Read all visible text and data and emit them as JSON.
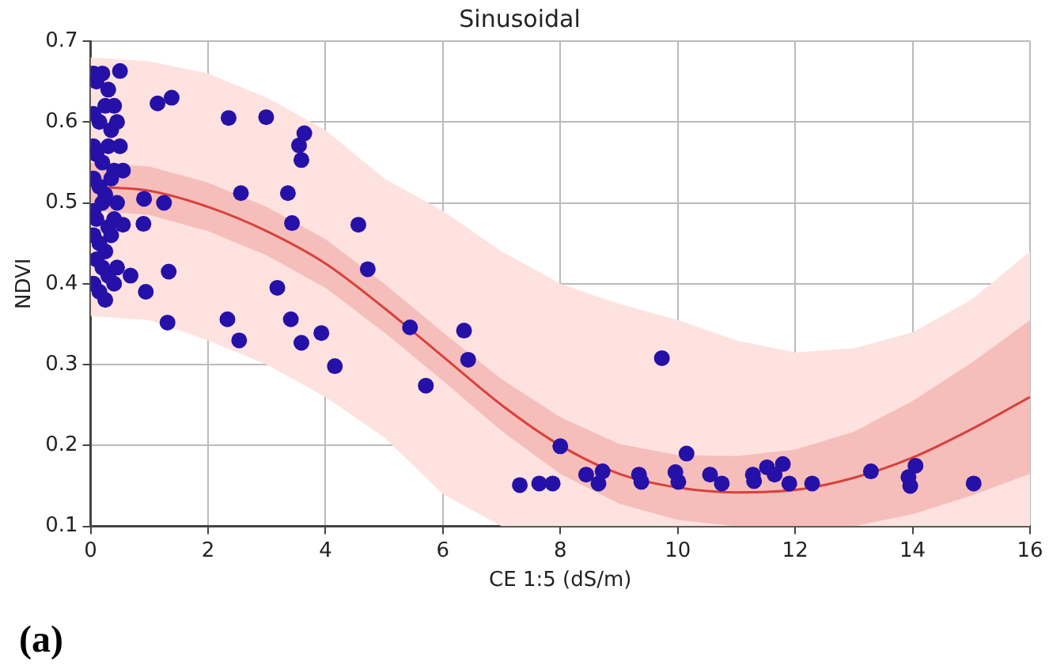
{
  "chart_data": {
    "type": "scatter",
    "title": "Sinusoidal",
    "xlabel": "CE 1:5 (dS/m)",
    "ylabel": "NDVI",
    "annotations": [
      "(a)"
    ],
    "xlim": [
      0,
      16
    ],
    "xticks": [
      0,
      2,
      4,
      6,
      8,
      10,
      12,
      14,
      16
    ],
    "ylim": [
      0.1,
      0.7
    ],
    "yticks": [
      0.1,
      0.2,
      0.3,
      0.4,
      0.5,
      0.6,
      0.7
    ],
    "grid": true,
    "legend": false,
    "marker": "circle",
    "series": [
      {
        "type": "area",
        "color": "#fde2df",
        "x": [
          0,
          1,
          2,
          3,
          4,
          5,
          6,
          7,
          8,
          9,
          10,
          11,
          12,
          13,
          14,
          15,
          16
        ],
        "values": [
          null,
          null,
          null,
          null,
          null,
          null,
          null,
          null,
          null,
          null,
          null,
          null,
          null,
          null,
          null,
          null,
          null
        ],
        "lower": [
          0.36,
          0.355,
          0.33,
          0.3,
          0.26,
          0.21,
          0.14,
          0.1,
          0.1,
          0.1,
          0.1,
          0.1,
          0.1,
          0.1,
          0.1,
          0.1,
          0.1
        ],
        "upper": [
          0.68,
          0.675,
          0.66,
          0.63,
          0.59,
          0.53,
          0.49,
          0.44,
          0.4,
          0.375,
          0.355,
          0.33,
          0.315,
          0.32,
          0.34,
          0.38,
          0.44
        ]
      },
      {
        "type": "line",
        "color": "#d9413a",
        "marker": "none",
        "line_style": "solid",
        "x": [
          0,
          1,
          2,
          3,
          4,
          5,
          6,
          7,
          8,
          9,
          10,
          11,
          12,
          13,
          14,
          15,
          16
        ],
        "values": [
          0.52,
          0.515,
          0.495,
          0.465,
          0.425,
          0.37,
          0.31,
          0.25,
          0.2,
          0.165,
          0.148,
          0.142,
          0.145,
          0.16,
          0.185,
          0.22,
          0.26
        ],
        "lower": [
          0.49,
          0.485,
          0.465,
          0.435,
          0.395,
          0.34,
          0.28,
          0.218,
          0.165,
          0.128,
          0.108,
          0.1,
          0.1,
          0.1,
          0.115,
          0.138,
          0.165
        ],
        "upper": [
          0.55,
          0.545,
          0.525,
          0.495,
          0.455,
          0.4,
          0.34,
          0.282,
          0.235,
          0.202,
          0.188,
          0.187,
          0.195,
          0.217,
          0.255,
          0.302,
          0.355
        ]
      },
      {
        "color": "#2510a8",
        "x": [
          0.5,
          1.14,
          1.38,
          2.35,
          2.99,
          3.64,
          3.55,
          3.59,
          2.56,
          3.36,
          0.91,
          1.25,
          0.9,
          0.55,
          3.43,
          4.56,
          4.72,
          1.33,
          0.68,
          0.94,
          3.18,
          1.31,
          2.33,
          3.41,
          2.53,
          3.59,
          3.93,
          4.16,
          5.44,
          5.71,
          6.36,
          6.43,
          9.73,
          8.0,
          7.31,
          7.64,
          7.87,
          8.44,
          8.72,
          8.65,
          9.34,
          9.38,
          9.96,
          10.01,
          10.15,
          10.55,
          10.75,
          11.28,
          11.3,
          11.52,
          11.65,
          11.79,
          11.9,
          12.29,
          13.29,
          13.93,
          13.96,
          14.05,
          15.04,
          0.05,
          0.1,
          0.2,
          0.3,
          0.4,
          0.05,
          0.15,
          0.25,
          0.35,
          0.45,
          0.05,
          0.1,
          0.2,
          0.3,
          0.4,
          0.5,
          0.05,
          0.15,
          0.25,
          0.35,
          0.45,
          0.55,
          0.05,
          0.1,
          0.2,
          0.3,
          0.4,
          0.05,
          0.15,
          0.25,
          0.35,
          0.1,
          0.2,
          0.3,
          0.45,
          0.05,
          0.15,
          0.25,
          0.4
        ],
        "values": [
          0.663,
          0.623,
          0.63,
          0.605,
          0.606,
          0.586,
          0.571,
          0.553,
          0.512,
          0.512,
          0.505,
          0.5,
          0.474,
          0.473,
          0.475,
          0.473,
          0.418,
          0.415,
          0.41,
          0.39,
          0.395,
          0.352,
          0.356,
          0.356,
          0.33,
          0.327,
          0.339,
          0.298,
          0.346,
          0.274,
          0.342,
          0.306,
          0.308,
          0.199,
          0.151,
          0.153,
          0.153,
          0.164,
          0.168,
          0.153,
          0.164,
          0.155,
          0.167,
          0.155,
          0.19,
          0.164,
          0.153,
          0.164,
          0.156,
          0.173,
          0.164,
          0.177,
          0.153,
          0.153,
          0.168,
          0.161,
          0.15,
          0.175,
          0.153,
          0.66,
          0.65,
          0.66,
          0.64,
          0.62,
          0.61,
          0.6,
          0.62,
          0.59,
          0.6,
          0.57,
          0.56,
          0.55,
          0.57,
          0.54,
          0.57,
          0.53,
          0.52,
          0.51,
          0.53,
          0.5,
          0.54,
          0.49,
          0.48,
          0.5,
          0.47,
          0.48,
          0.46,
          0.45,
          0.44,
          0.46,
          0.43,
          0.42,
          0.41,
          0.42,
          0.4,
          0.39,
          0.38,
          0.4
        ]
      }
    ]
  }
}
